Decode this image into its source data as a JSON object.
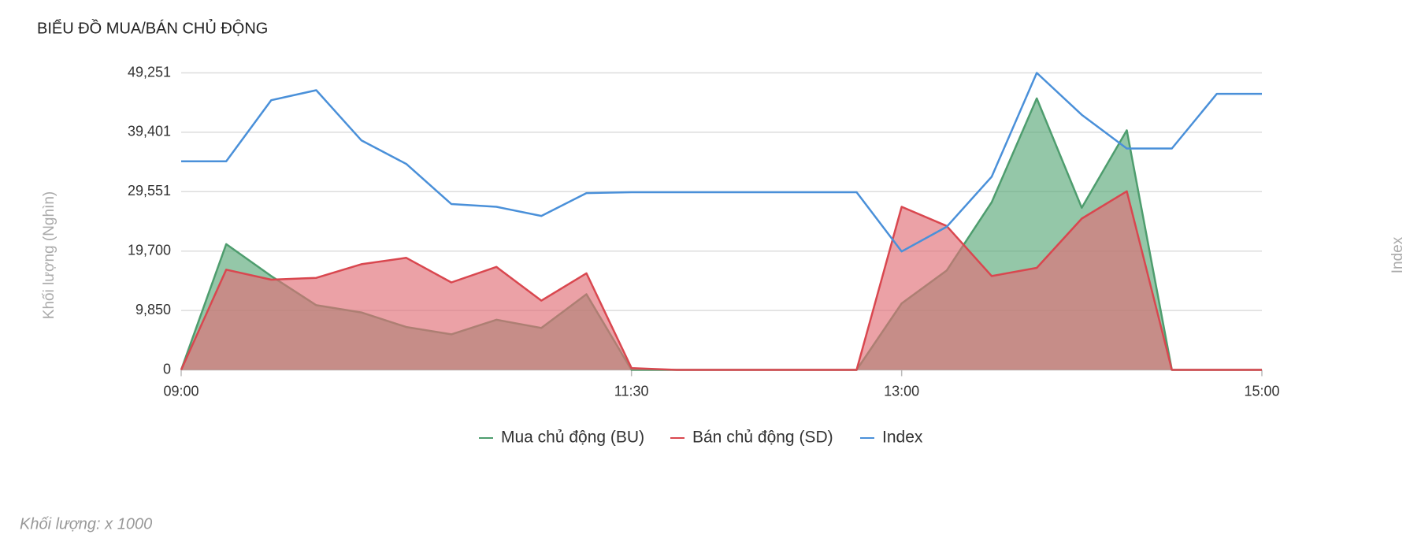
{
  "chart_data": {
    "type": "area",
    "title": "BIỂU ĐỒ MUA/BÁN CHỦ ĐỘNG",
    "y_axis_title": "Khối lượng (Nghìn)",
    "y2_axis_title": "Index",
    "footnote": "Khối lượng: x 1000",
    "x": [
      "09:00",
      "09:15",
      "09:30",
      "09:45",
      "10:00",
      "10:15",
      "10:30",
      "10:45",
      "11:00",
      "11:15",
      "11:30",
      "11:45",
      "12:00",
      "12:15",
      "12:30",
      "12:45",
      "13:00",
      "13:15",
      "13:30",
      "13:45",
      "14:00",
      "14:15",
      "14:30",
      "14:45",
      "15:00"
    ],
    "xlim": [
      "09:00",
      "15:00"
    ],
    "xticks": [
      "09:00",
      "11:30",
      "13:00",
      "15:00"
    ],
    "ylim": [
      0,
      49251
    ],
    "yticks": [
      0,
      {
        "value": 9850,
        "label": "9,850"
      },
      {
        "value": 19700,
        "label": "19,700"
      },
      {
        "value": 29551,
        "label": "29,551"
      },
      {
        "value": 39401,
        "label": "39,401"
      },
      {
        "value": 49251,
        "label": "49,251"
      }
    ],
    "y2lim": [
      0,
      49251
    ],
    "grid": true,
    "legend": "bottom",
    "series": [
      {
        "name": "Mua chủ động (BU)",
        "color": "#4e9d6e",
        "fill": "#5aa97a",
        "values": [
          0,
          20849,
          15561,
          10727,
          9518,
          7101,
          5892,
          8309,
          6950,
          12540,
          0,
          0,
          0,
          0,
          0,
          0,
          11029,
          16468,
          27798,
          45021,
          26892,
          39733,
          0,
          0,
          0
        ]
      },
      {
        "name": "Bán chủ động (SD)",
        "color": "#d9474f",
        "fill": "#e06f76",
        "values": [
          0,
          16619,
          14957,
          15259,
          17525,
          18583,
          14504,
          17072,
          11482,
          16014,
          300,
          0,
          0,
          0,
          0,
          0,
          27043,
          23870,
          15561,
          16921,
          25079,
          29611,
          0,
          0,
          0
        ]
      },
      {
        "name": "Index",
        "color": "#4a90d9",
        "axis": "y2",
        "values": [
          34597,
          34597,
          44719,
          46381,
          38072,
          34144,
          27496,
          27043,
          25532,
          29309,
          29460,
          29460,
          29460,
          29460,
          29460,
          29460,
          19640,
          23719,
          32028,
          49251,
          42302,
          36712,
          36712,
          45776,
          45776
        ]
      }
    ]
  }
}
